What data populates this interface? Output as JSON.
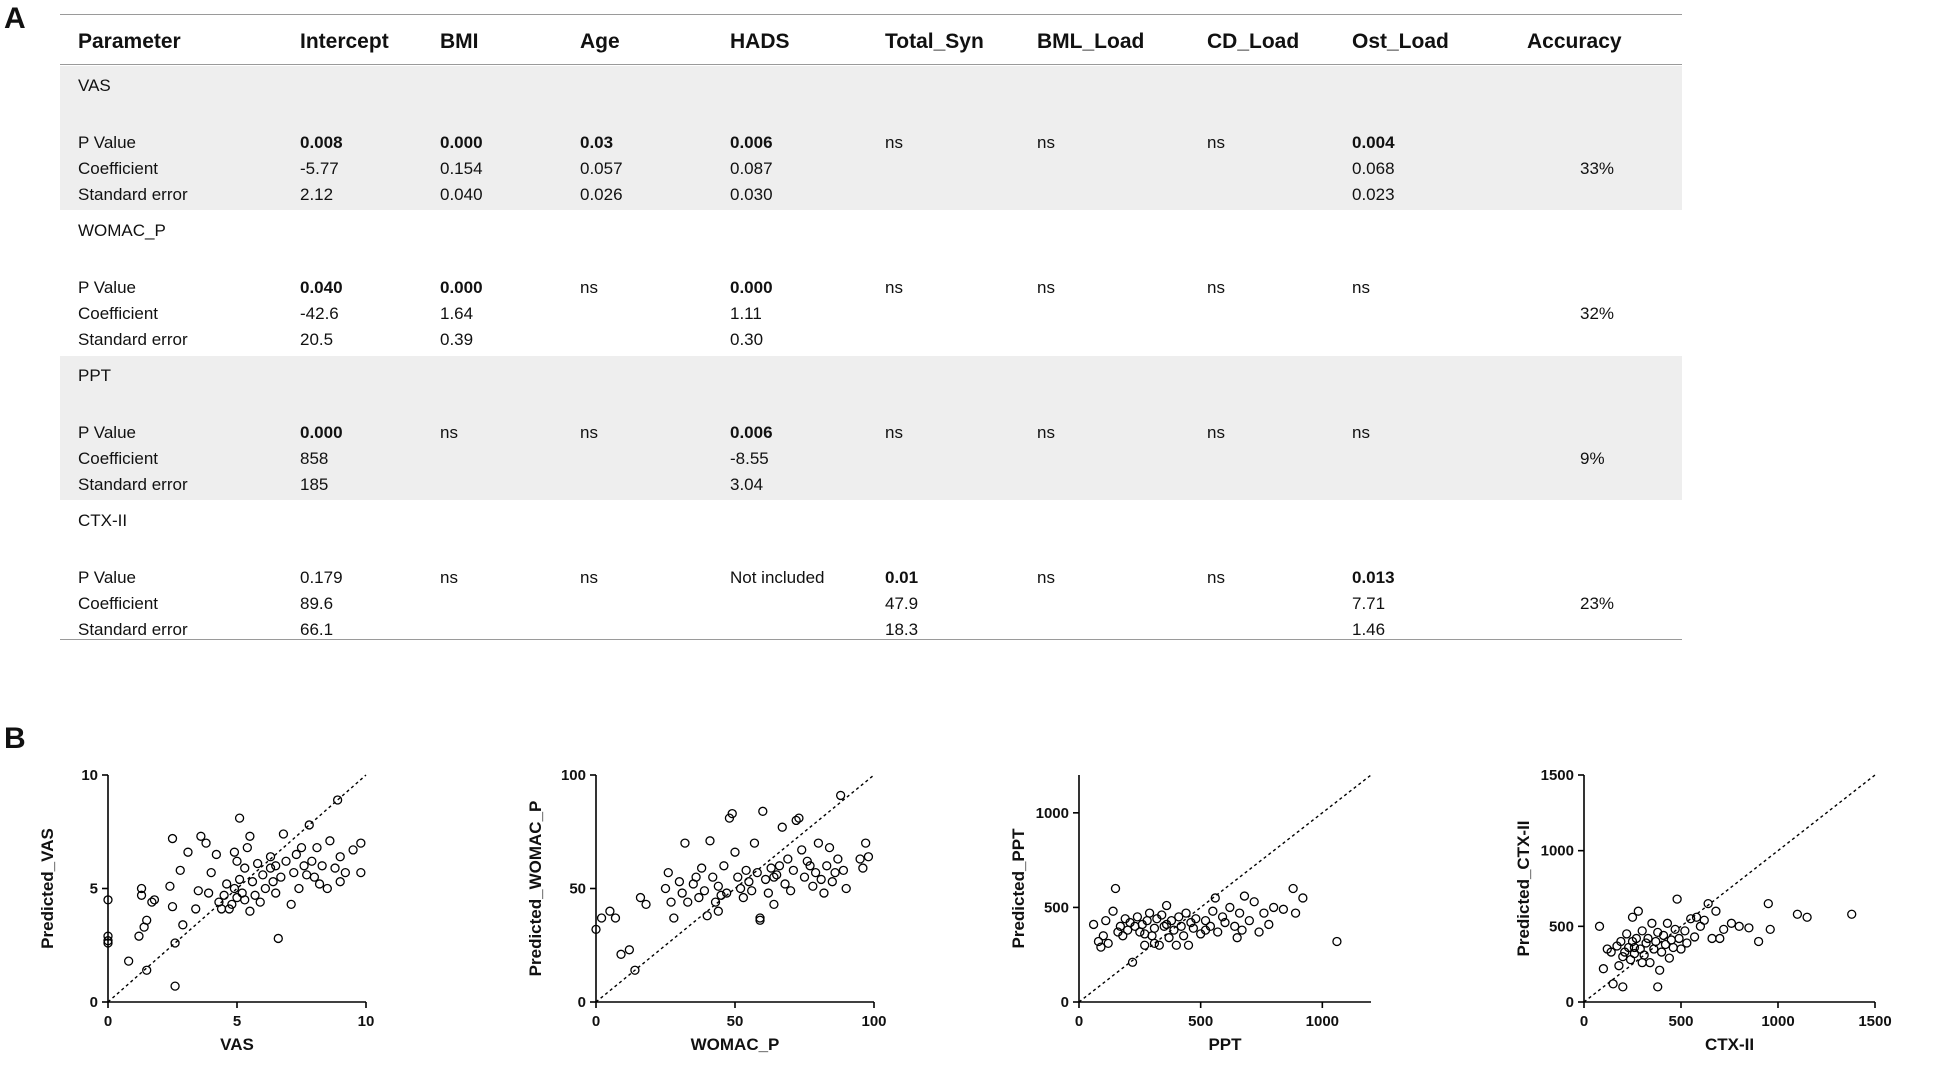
{
  "panel_a_label": "A",
  "panel_b_label": "B",
  "table": {
    "headers": [
      "Parameter",
      "Intercept",
      "BMI",
      "Age",
      "HADS",
      "Total_Syn",
      "BML_Load",
      "CD_Load",
      "Ost_Load",
      "Accuracy"
    ],
    "row_labels": [
      "P Value",
      "Coefficient",
      "Standard error"
    ],
    "blocks": [
      {
        "name": "VAS",
        "shaded": true,
        "p": [
          "0.008",
          "0.000",
          "0.03",
          "0.006",
          "ns",
          "ns",
          "ns",
          "0.004"
        ],
        "p_bold": [
          true,
          true,
          true,
          true,
          false,
          false,
          false,
          true
        ],
        "coef": [
          "-5.77",
          "0.154",
          "0.057",
          "0.087",
          "",
          "",
          "",
          "0.068"
        ],
        "se": [
          "2.12",
          "0.040",
          "0.026",
          "0.030",
          "",
          "",
          "",
          "0.023"
        ],
        "accuracy": "33%"
      },
      {
        "name": "WOMAC_P",
        "shaded": false,
        "p": [
          "0.040",
          "0.000",
          "ns",
          "0.000",
          "ns",
          "ns",
          "ns",
          "ns"
        ],
        "p_bold": [
          true,
          true,
          false,
          true,
          false,
          false,
          false,
          false
        ],
        "coef": [
          "-42.6",
          "1.64",
          "",
          "1.11",
          "",
          "",
          "",
          ""
        ],
        "se": [
          "20.5",
          "0.39",
          "",
          "0.30",
          "",
          "",
          "",
          ""
        ],
        "accuracy": "32%"
      },
      {
        "name": "PPT",
        "shaded": true,
        "p": [
          "0.000",
          "ns",
          "ns",
          "0.006",
          "ns",
          "ns",
          "ns",
          "ns"
        ],
        "p_bold": [
          true,
          false,
          false,
          true,
          false,
          false,
          false,
          false
        ],
        "coef": [
          "858",
          "",
          "",
          "-8.55",
          "",
          "",
          "",
          ""
        ],
        "se": [
          "185",
          "",
          "",
          "3.04",
          "",
          "",
          "",
          ""
        ],
        "accuracy": "9%"
      },
      {
        "name": "CTX-II",
        "shaded": false,
        "p": [
          "0.179",
          "ns",
          "ns",
          "Not included",
          "0.01",
          "ns",
          "ns",
          "0.013"
        ],
        "p_bold": [
          false,
          false,
          false,
          false,
          true,
          false,
          false,
          true
        ],
        "coef": [
          "89.6",
          "",
          "",
          "",
          "47.9",
          "",
          "",
          "7.71"
        ],
        "se": [
          "66.1",
          "",
          "",
          "",
          "18.3",
          "",
          "",
          "1.46"
        ],
        "accuracy": "23%"
      }
    ]
  },
  "chart_data": [
    {
      "type": "scatter",
      "xlabel": "VAS",
      "ylabel": "Predicted_VAS",
      "xlim": [
        0,
        10
      ],
      "ylim": [
        0,
        10
      ],
      "xticks": [
        0,
        5,
        10
      ],
      "yticks": [
        0,
        5,
        10
      ],
      "reference": "identity",
      "points": [
        [
          0,
          4.5
        ],
        [
          0,
          2.9
        ],
        [
          0,
          2.7
        ],
        [
          0,
          2.6
        ],
        [
          0.8,
          1.8
        ],
        [
          1.2,
          2.9
        ],
        [
          1.3,
          4.7
        ],
        [
          1.3,
          5.0
        ],
        [
          1.4,
          3.3
        ],
        [
          1.5,
          1.4
        ],
        [
          1.5,
          3.6
        ],
        [
          1.7,
          4.4
        ],
        [
          1.8,
          4.5
        ],
        [
          2.4,
          5.1
        ],
        [
          2.5,
          4.2
        ],
        [
          2.5,
          7.2
        ],
        [
          2.6,
          2.6
        ],
        [
          2.6,
          0.7
        ],
        [
          2.8,
          5.8
        ],
        [
          2.9,
          3.4
        ],
        [
          3.1,
          6.6
        ],
        [
          3.4,
          4.1
        ],
        [
          3.5,
          4.9
        ],
        [
          3.6,
          7.3
        ],
        [
          3.8,
          7.0
        ],
        [
          3.9,
          4.8
        ],
        [
          4.0,
          5.7
        ],
        [
          4.2,
          6.5
        ],
        [
          4.3,
          4.4
        ],
        [
          4.5,
          4.7
        ],
        [
          4.6,
          5.2
        ],
        [
          4.7,
          4.1
        ],
        [
          4.8,
          4.3
        ],
        [
          4.9,
          5.0
        ],
        [
          4.9,
          6.6
        ],
        [
          5.0,
          4.6
        ],
        [
          5.0,
          6.2
        ],
        [
          5.1,
          8.1
        ],
        [
          5.1,
          5.4
        ],
        [
          5.2,
          4.8
        ],
        [
          5.3,
          5.9
        ],
        [
          5.3,
          4.5
        ],
        [
          5.4,
          6.8
        ],
        [
          5.5,
          4.0
        ],
        [
          5.5,
          7.3
        ],
        [
          5.6,
          5.3
        ],
        [
          5.7,
          4.7
        ],
        [
          5.8,
          6.1
        ],
        [
          5.9,
          4.4
        ],
        [
          6.0,
          5.6
        ],
        [
          6.1,
          5.0
        ],
        [
          6.3,
          5.9
        ],
        [
          6.4,
          5.3
        ],
        [
          6.5,
          6.0
        ],
        [
          6.5,
          4.8
        ],
        [
          6.6,
          2.8
        ],
        [
          6.7,
          5.5
        ],
        [
          6.8,
          7.4
        ],
        [
          6.9,
          6.2
        ],
        [
          7.1,
          4.3
        ],
        [
          7.2,
          5.7
        ],
        [
          7.3,
          6.5
        ],
        [
          7.4,
          5.0
        ],
        [
          7.5,
          6.8
        ],
        [
          7.6,
          6.0
        ],
        [
          7.7,
          5.6
        ],
        [
          7.8,
          7.8
        ],
        [
          7.9,
          6.2
        ],
        [
          8.0,
          5.5
        ],
        [
          8.1,
          6.8
        ],
        [
          8.2,
          5.2
        ],
        [
          8.3,
          6.0
        ],
        [
          8.5,
          5.0
        ],
        [
          8.6,
          7.1
        ],
        [
          8.8,
          5.9
        ],
        [
          8.9,
          8.9
        ],
        [
          9.0,
          6.4
        ],
        [
          9.2,
          5.7
        ],
        [
          9.5,
          6.7
        ],
        [
          9.8,
          7.0
        ],
        [
          9.8,
          5.7
        ],
        [
          9.0,
          5.3
        ],
        [
          6.3,
          6.4
        ],
        [
          4.4,
          4.1
        ]
      ]
    },
    {
      "type": "scatter",
      "xlabel": "WOMAC_P",
      "ylabel": "Predicted_WOMAC_P",
      "xlim": [
        0,
        100
      ],
      "ylim": [
        0,
        100
      ],
      "xticks": [
        0,
        50,
        100
      ],
      "yticks": [
        0,
        50,
        100
      ],
      "reference": "identity",
      "points": [
        [
          0,
          32
        ],
        [
          2,
          37
        ],
        [
          5,
          40
        ],
        [
          7,
          37
        ],
        [
          9,
          21
        ],
        [
          12,
          23
        ],
        [
          14,
          14
        ],
        [
          16,
          46
        ],
        [
          18,
          43
        ],
        [
          25,
          50
        ],
        [
          26,
          57
        ],
        [
          27,
          44
        ],
        [
          28,
          37
        ],
        [
          30,
          53
        ],
        [
          31,
          48
        ],
        [
          32,
          70
        ],
        [
          33,
          44
        ],
        [
          35,
          52
        ],
        [
          36,
          55
        ],
        [
          37,
          46
        ],
        [
          38,
          59
        ],
        [
          39,
          49
        ],
        [
          40,
          38
        ],
        [
          41,
          71
        ],
        [
          42,
          55
        ],
        [
          43,
          44
        ],
        [
          44,
          51
        ],
        [
          45,
          47
        ],
        [
          46,
          60
        ],
        [
          47,
          48
        ],
        [
          48,
          81
        ],
        [
          49,
          83
        ],
        [
          50,
          66
        ],
        [
          51,
          55
        ],
        [
          52,
          50
        ],
        [
          53,
          46
        ],
        [
          54,
          58
        ],
        [
          55,
          53
        ],
        [
          56,
          49
        ],
        [
          57,
          70
        ],
        [
          58,
          57
        ],
        [
          59,
          37
        ],
        [
          60,
          84
        ],
        [
          61,
          54
        ],
        [
          62,
          48
        ],
        [
          63,
          59
        ],
        [
          64,
          43
        ],
        [
          65,
          56
        ],
        [
          66,
          60
        ],
        [
          67,
          77
        ],
        [
          68,
          52
        ],
        [
          69,
          63
        ],
        [
          70,
          49
        ],
        [
          71,
          58
        ],
        [
          72,
          80
        ],
        [
          73,
          81
        ],
        [
          74,
          67
        ],
        [
          75,
          55
        ],
        [
          76,
          62
        ],
        [
          77,
          60
        ],
        [
          78,
          51
        ],
        [
          79,
          57
        ],
        [
          80,
          70
        ],
        [
          81,
          54
        ],
        [
          82,
          48
        ],
        [
          83,
          60
        ],
        [
          84,
          68
        ],
        [
          85,
          53
        ],
        [
          86,
          57
        ],
        [
          87,
          63
        ],
        [
          88,
          91
        ],
        [
          89,
          58
        ],
        [
          90,
          50
        ],
        [
          95,
          63
        ],
        [
          96,
          59
        ],
        [
          97,
          70
        ],
        [
          98,
          64
        ],
        [
          59,
          36
        ],
        [
          44,
          40
        ],
        [
          64,
          55
        ]
      ]
    },
    {
      "type": "scatter",
      "xlabel": "PPT",
      "ylabel": "Predicted_PPT",
      "xlim": [
        0,
        1200
      ],
      "ylim": [
        0,
        1200
      ],
      "xticks": [
        0,
        500,
        1000
      ],
      "yticks": [
        0,
        500,
        1000
      ],
      "reference": "identity",
      "points": [
        [
          60,
          410
        ],
        [
          80,
          320
        ],
        [
          90,
          290
        ],
        [
          100,
          350
        ],
        [
          110,
          430
        ],
        [
          120,
          310
        ],
        [
          140,
          480
        ],
        [
          150,
          600
        ],
        [
          160,
          370
        ],
        [
          170,
          400
        ],
        [
          180,
          350
        ],
        [
          190,
          440
        ],
        [
          200,
          380
        ],
        [
          210,
          420
        ],
        [
          220,
          210
        ],
        [
          230,
          400
        ],
        [
          240,
          450
        ],
        [
          250,
          370
        ],
        [
          260,
          410
        ],
        [
          270,
          360
        ],
        [
          280,
          430
        ],
        [
          290,
          470
        ],
        [
          300,
          350
        ],
        [
          310,
          390
        ],
        [
          320,
          440
        ],
        [
          330,
          300
        ],
        [
          340,
          460
        ],
        [
          350,
          400
        ],
        [
          360,
          510
        ],
        [
          370,
          340
        ],
        [
          380,
          430
        ],
        [
          390,
          380
        ],
        [
          400,
          300
        ],
        [
          410,
          450
        ],
        [
          420,
          400
        ],
        [
          430,
          350
        ],
        [
          440,
          470
        ],
        [
          450,
          300
        ],
        [
          460,
          420
        ],
        [
          470,
          390
        ],
        [
          480,
          440
        ],
        [
          500,
          360
        ],
        [
          520,
          430
        ],
        [
          540,
          400
        ],
        [
          550,
          480
        ],
        [
          560,
          550
        ],
        [
          570,
          370
        ],
        [
          590,
          450
        ],
        [
          600,
          420
        ],
        [
          620,
          500
        ],
        [
          640,
          400
        ],
        [
          650,
          340
        ],
        [
          660,
          470
        ],
        [
          670,
          380
        ],
        [
          680,
          560
        ],
        [
          700,
          430
        ],
        [
          720,
          530
        ],
        [
          740,
          370
        ],
        [
          760,
          470
        ],
        [
          780,
          410
        ],
        [
          800,
          500
        ],
        [
          840,
          490
        ],
        [
          880,
          600
        ],
        [
          890,
          470
        ],
        [
          920,
          550
        ],
        [
          1060,
          320
        ],
        [
          520,
          380
        ],
        [
          310,
          310
        ],
        [
          360,
          410
        ],
        [
          270,
          300
        ]
      ]
    },
    {
      "type": "scatter",
      "xlabel": "CTX-II",
      "ylabel": "Predicted_CTX-II",
      "xlim": [
        0,
        1500
      ],
      "ylim": [
        0,
        1500
      ],
      "xticks": [
        0,
        500,
        1000,
        1500
      ],
      "yticks": [
        0,
        500,
        1000,
        1500
      ],
      "reference": "identity",
      "points": [
        [
          80,
          500
        ],
        [
          100,
          220
        ],
        [
          120,
          350
        ],
        [
          140,
          330
        ],
        [
          150,
          120
        ],
        [
          170,
          370
        ],
        [
          180,
          240
        ],
        [
          190,
          400
        ],
        [
          200,
          100
        ],
        [
          200,
          300
        ],
        [
          210,
          330
        ],
        [
          220,
          450
        ],
        [
          230,
          360
        ],
        [
          240,
          280
        ],
        [
          250,
          400
        ],
        [
          250,
          560
        ],
        [
          260,
          320
        ],
        [
          270,
          420
        ],
        [
          280,
          600
        ],
        [
          290,
          350
        ],
        [
          300,
          470
        ],
        [
          310,
          310
        ],
        [
          320,
          390
        ],
        [
          330,
          420
        ],
        [
          340,
          260
        ],
        [
          350,
          520
        ],
        [
          360,
          350
        ],
        [
          370,
          400
        ],
        [
          380,
          460
        ],
        [
          390,
          210
        ],
        [
          400,
          330
        ],
        [
          410,
          440
        ],
        [
          420,
          380
        ],
        [
          430,
          520
        ],
        [
          440,
          290
        ],
        [
          450,
          410
        ],
        [
          460,
          360
        ],
        [
          470,
          480
        ],
        [
          480,
          680
        ],
        [
          490,
          420
        ],
        [
          500,
          350
        ],
        [
          520,
          470
        ],
        [
          530,
          390
        ],
        [
          550,
          550
        ],
        [
          570,
          430
        ],
        [
          580,
          560
        ],
        [
          600,
          500
        ],
        [
          620,
          540
        ],
        [
          640,
          650
        ],
        [
          660,
          420
        ],
        [
          680,
          600
        ],
        [
          700,
          420
        ],
        [
          720,
          480
        ],
        [
          760,
          520
        ],
        [
          800,
          500
        ],
        [
          850,
          490
        ],
        [
          900,
          400
        ],
        [
          950,
          650
        ],
        [
          960,
          480
        ],
        [
          1100,
          580
        ],
        [
          1150,
          560
        ],
        [
          1380,
          580
        ],
        [
          380,
          100
        ],
        [
          300,
          260
        ],
        [
          260,
          360
        ]
      ]
    }
  ]
}
